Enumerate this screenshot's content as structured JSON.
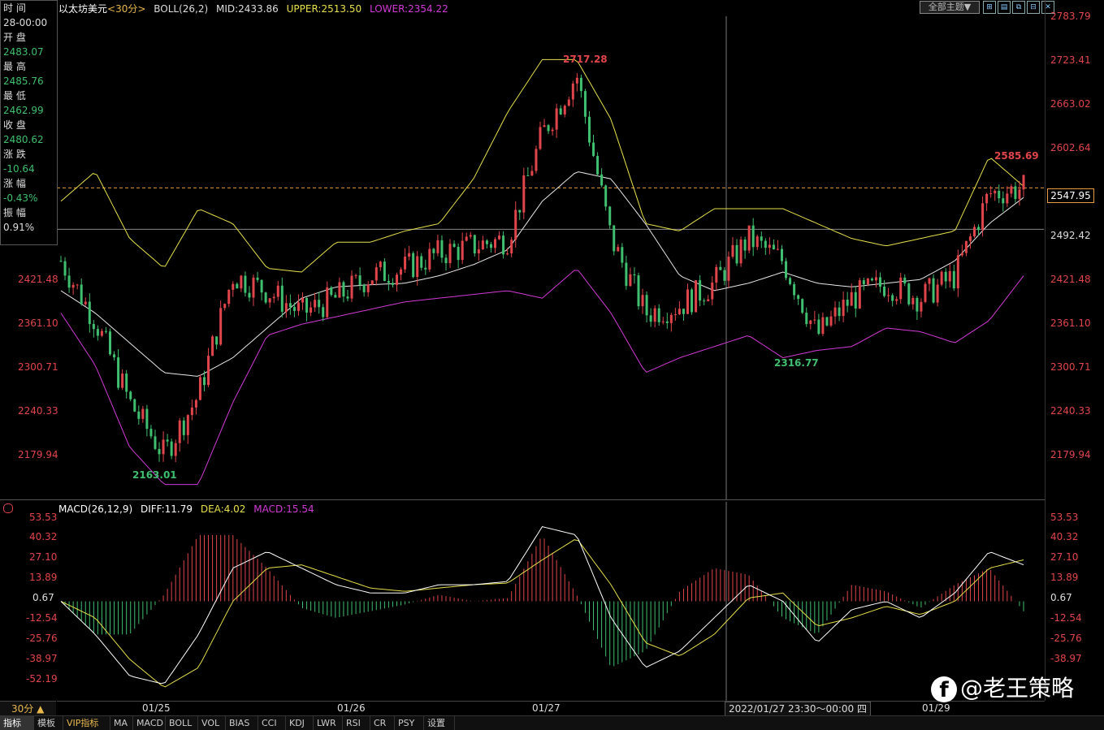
{
  "legend": {
    "symbol": "以太坊美元",
    "period_tag": "<30分>",
    "indicator": "BOLL(26,2)",
    "mid": "MID:2433.86",
    "upper": "UPPER:2513.50",
    "lower": "LOWER:2354.22"
  },
  "info_panel": {
    "time_label": "时 间",
    "time_value": "28-00:00",
    "open_label": "开 盘",
    "open_value": "2483.07",
    "high_label": "最 高",
    "high_value": "2485.76",
    "low_label": "最 低",
    "low_value": "2462.99",
    "close_label": "收 盘",
    "close_value": "2480.62",
    "change_label": "涨 跌",
    "change_value": "-10.64",
    "pct_label": "涨 幅",
    "pct_value": "-0.43%",
    "amp_label": "振 幅",
    "amp_value": "0.91%"
  },
  "toolbar": {
    "theme_button": "全部主题▼",
    "icons": [
      "⊞",
      "▤",
      "⧉",
      "⊟",
      "✕"
    ]
  },
  "price_axis": {
    "ticks": [
      "2783.79",
      "2723.41",
      "2663.02",
      "2602.64",
      "2421.48",
      "2361.10",
      "2300.71",
      "2240.33",
      "2179.94"
    ],
    "current_price": "2547.95",
    "crosshair_price": "2492.42"
  },
  "left_axis": {
    "ticks": [
      "2421.48",
      "2361.10",
      "2300.71",
      "2240.33",
      "2179.94"
    ]
  },
  "annotations": {
    "high_label": "2717.28",
    "low_label": "2163.01",
    "low2_label": "2316.77",
    "recent_high_label": "2585.69"
  },
  "macd_legend": {
    "indicator": "MACD(26,12,9)",
    "diff": "DIFF:11.79",
    "dea": "DEA:4.02",
    "macd": "MACD:15.54"
  },
  "macd_axis": {
    "ticks": [
      "53.53",
      "40.32",
      "27.10",
      "13.89",
      "0.67",
      "-12.54",
      "-25.76",
      "-38.97",
      "-52.19"
    ]
  },
  "time_axis": {
    "labels": [
      "01/25",
      "01/26",
      "01/27",
      "01/29"
    ],
    "cursor_time": "2022/01/27 23:30～00:00 四"
  },
  "period": "30分 ▲",
  "tabs": [
    "指标",
    "模板",
    "VIP指标",
    "MA",
    "MACD",
    "BOLL",
    "VOL",
    "BIAS",
    "CCI",
    "KDJ",
    "LWR",
    "RSI",
    "CR",
    "PSY",
    "设置"
  ],
  "watermark": "@老王策略",
  "colors": {
    "up": "#e0454b",
    "down": "#3fbf6f",
    "boll_mid": "#e8e8e8",
    "boll_upper": "#e6e04a",
    "boll_lower": "#d23ad6",
    "macd_diff": "#ffffff",
    "macd_dea": "#e6e04a"
  },
  "chart_data": {
    "type": "candlestick",
    "y_range": [
      2130,
      2800
    ],
    "boll_mid": [
      2410,
      2380,
      2340,
      2300,
      2295,
      2320,
      2360,
      2400,
      2415,
      2418,
      2420,
      2430,
      2445,
      2465,
      2530,
      2570,
      2560,
      2500,
      2430,
      2410,
      2420,
      2435,
      2420,
      2415,
      2420,
      2425,
      2450,
      2500,
      2535
    ],
    "boll_upper": [
      2530,
      2570,
      2480,
      2440,
      2520,
      2500,
      2440,
      2435,
      2475,
      2475,
      2490,
      2500,
      2560,
      2650,
      2720,
      2720,
      2640,
      2500,
      2490,
      2520,
      2520,
      2520,
      2500,
      2480,
      2470,
      2480,
      2490,
      2590,
      2550
    ],
    "boll_lower": [
      2380,
      2310,
      2200,
      2150,
      2150,
      2260,
      2350,
      2365,
      2375,
      2385,
      2395,
      2400,
      2405,
      2410,
      2400,
      2440,
      2380,
      2300,
      2320,
      2335,
      2350,
      2320,
      2330,
      2335,
      2360,
      2355,
      2340,
      2370,
      2430
    ],
    "closes": [
      2450,
      2370,
      2260,
      2190,
      2270,
      2430,
      2410,
      2380,
      2400,
      2430,
      2440,
      2460,
      2470,
      2480,
      2620,
      2700,
      2480,
      2380,
      2390,
      2420,
      2480,
      2450,
      2350,
      2400,
      2420,
      2400,
      2430,
      2540,
      2548
    ],
    "macd_diff": [
      0,
      -20,
      -45,
      -50,
      -20,
      20,
      30,
      20,
      10,
      5,
      5,
      10,
      10,
      12,
      45,
      40,
      -10,
      -40,
      -30,
      -10,
      10,
      0,
      -25,
      -5,
      0,
      -10,
      5,
      30,
      22
    ],
    "macd_dea": [
      0,
      -10,
      -35,
      -52,
      -40,
      0,
      20,
      22,
      15,
      8,
      6,
      8,
      10,
      11,
      25,
      38,
      10,
      -25,
      -33,
      -20,
      2,
      5,
      -15,
      -10,
      -3,
      -8,
      0,
      20,
      25
    ],
    "macd_range": [
      -60,
      60
    ]
  }
}
